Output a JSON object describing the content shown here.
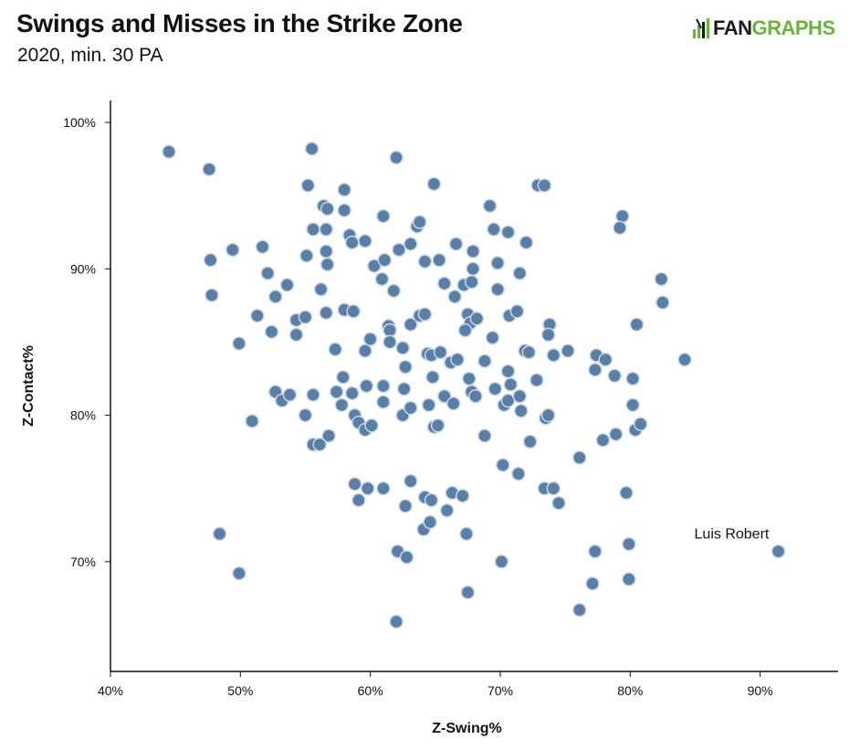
{
  "header": {
    "title": "Swings and Misses in the Strike Zone",
    "subtitle": "2020, min. 30 PA"
  },
  "logo": {
    "part1": "FAN",
    "part2": "GRAPHS"
  },
  "colors": {
    "point_fill": "#5a7fa6",
    "point_stroke": "#c9d6e4",
    "logo_green": "#6ab43e"
  },
  "chart_data": {
    "type": "scatter",
    "xlabel": "Z-Swing%",
    "ylabel": "Z-Contact%",
    "xlim": [
      40,
      96
    ],
    "ylim": [
      62.5,
      101.5
    ],
    "xticks": [
      40,
      50,
      60,
      70,
      80,
      90
    ],
    "yticks": [
      70,
      80,
      90,
      100
    ],
    "xtick_labels": [
      "40%",
      "50%",
      "60%",
      "70%",
      "80%",
      "90%"
    ],
    "ytick_labels": [
      "70%",
      "80%",
      "90%",
      "100%"
    ],
    "grid": false,
    "annotation": {
      "text": "Luis Robert",
      "x": 91.4,
      "y": 70.7
    },
    "points": [
      [
        44.5,
        98.0
      ],
      [
        47.6,
        96.8
      ],
      [
        55.5,
        98.2
      ],
      [
        62.0,
        97.6
      ],
      [
        55.2,
        95.7
      ],
      [
        58.0,
        95.4
      ],
      [
        64.9,
        95.8
      ],
      [
        72.9,
        95.7
      ],
      [
        73.4,
        95.7
      ],
      [
        56.4,
        94.3
      ],
      [
        56.7,
        94.1
      ],
      [
        58.0,
        94.0
      ],
      [
        69.2,
        94.3
      ],
      [
        79.4,
        93.6
      ],
      [
        55.6,
        92.7
      ],
      [
        56.6,
        92.7
      ],
      [
        61.0,
        93.6
      ],
      [
        63.6,
        92.9
      ],
      [
        63.8,
        93.2
      ],
      [
        69.5,
        92.7
      ],
      [
        70.6,
        92.5
      ],
      [
        79.2,
        92.8
      ],
      [
        58.4,
        92.3
      ],
      [
        58.6,
        91.8
      ],
      [
        59.6,
        91.9
      ],
      [
        62.2,
        91.3
      ],
      [
        63.1,
        91.7
      ],
      [
        66.6,
        91.7
      ],
      [
        67.9,
        91.2
      ],
      [
        72.0,
        91.8
      ],
      [
        47.7,
        90.6
      ],
      [
        49.4,
        91.3
      ],
      [
        51.7,
        91.5
      ],
      [
        55.1,
        90.9
      ],
      [
        56.6,
        91.2
      ],
      [
        56.7,
        90.3
      ],
      [
        60.3,
        90.2
      ],
      [
        61.1,
        90.6
      ],
      [
        64.2,
        90.5
      ],
      [
        65.3,
        90.6
      ],
      [
        67.9,
        90.0
      ],
      [
        69.8,
        90.4
      ],
      [
        71.5,
        89.7
      ],
      [
        82.4,
        89.3
      ],
      [
        47.8,
        88.2
      ],
      [
        52.1,
        89.7
      ],
      [
        52.7,
        88.1
      ],
      [
        53.6,
        88.9
      ],
      [
        56.2,
        88.6
      ],
      [
        60.9,
        89.3
      ],
      [
        61.8,
        88.5
      ],
      [
        65.7,
        89.0
      ],
      [
        66.5,
        88.1
      ],
      [
        67.2,
        88.9
      ],
      [
        67.8,
        89.1
      ],
      [
        69.8,
        88.6
      ],
      [
        82.5,
        87.7
      ],
      [
        51.3,
        86.8
      ],
      [
        54.3,
        86.5
      ],
      [
        55.0,
        86.7
      ],
      [
        56.6,
        87.0
      ],
      [
        58.0,
        87.2
      ],
      [
        58.7,
        87.1
      ],
      [
        61.4,
        86.1
      ],
      [
        61.5,
        85.8
      ],
      [
        63.1,
        86.2
      ],
      [
        63.8,
        86.8
      ],
      [
        64.2,
        86.9
      ],
      [
        67.5,
        86.9
      ],
      [
        67.7,
        86.3
      ],
      [
        68.2,
        86.6
      ],
      [
        70.7,
        86.8
      ],
      [
        71.3,
        87.1
      ],
      [
        73.8,
        86.2
      ],
      [
        80.5,
        86.2
      ],
      [
        49.9,
        84.9
      ],
      [
        52.4,
        85.7
      ],
      [
        54.3,
        85.5
      ],
      [
        57.3,
        84.5
      ],
      [
        59.6,
        84.4
      ],
      [
        60.0,
        85.2
      ],
      [
        61.5,
        85.0
      ],
      [
        62.5,
        84.6
      ],
      [
        64.4,
        84.2
      ],
      [
        64.7,
        84.1
      ],
      [
        65.4,
        84.3
      ],
      [
        67.3,
        85.8
      ],
      [
        69.4,
        85.3
      ],
      [
        71.9,
        84.4
      ],
      [
        72.2,
        84.3
      ],
      [
        73.7,
        85.5
      ],
      [
        74.1,
        84.1
      ],
      [
        75.2,
        84.4
      ],
      [
        77.4,
        84.1
      ],
      [
        78.1,
        83.8
      ],
      [
        84.2,
        83.8
      ],
      [
        62.7,
        83.3
      ],
      [
        66.2,
        83.6
      ],
      [
        66.7,
        83.8
      ],
      [
        68.8,
        83.7
      ],
      [
        70.6,
        83.0
      ],
      [
        77.3,
        83.1
      ],
      [
        78.8,
        82.7
      ],
      [
        52.7,
        81.6
      ],
      [
        53.2,
        81.0
      ],
      [
        53.8,
        81.4
      ],
      [
        55.6,
        81.4
      ],
      [
        57.4,
        81.6
      ],
      [
        57.9,
        82.6
      ],
      [
        57.8,
        80.7
      ],
      [
        58.6,
        81.5
      ],
      [
        59.7,
        82.0
      ],
      [
        61.0,
        82.0
      ],
      [
        61.0,
        80.9
      ],
      [
        62.6,
        81.8
      ],
      [
        64.5,
        80.7
      ],
      [
        64.8,
        82.6
      ],
      [
        65.7,
        81.3
      ],
      [
        66.4,
        80.8
      ],
      [
        67.6,
        82.5
      ],
      [
        67.8,
        81.6
      ],
      [
        68.1,
        81.3
      ],
      [
        69.6,
        81.8
      ],
      [
        70.3,
        80.7
      ],
      [
        70.6,
        81.0
      ],
      [
        70.8,
        82.1
      ],
      [
        71.5,
        81.3
      ],
      [
        72.8,
        82.4
      ],
      [
        80.2,
        82.5
      ],
      [
        50.9,
        79.6
      ],
      [
        55.0,
        80.0
      ],
      [
        58.8,
        80.0
      ],
      [
        59.1,
        79.5
      ],
      [
        59.6,
        79.0
      ],
      [
        60.1,
        79.3
      ],
      [
        62.5,
        80.0
      ],
      [
        63.1,
        80.5
      ],
      [
        64.9,
        79.2
      ],
      [
        65.2,
        79.3
      ],
      [
        68.8,
        78.6
      ],
      [
        71.6,
        80.3
      ],
      [
        73.5,
        79.8
      ],
      [
        73.7,
        80.0
      ],
      [
        80.2,
        80.7
      ],
      [
        80.4,
        79.0
      ],
      [
        80.8,
        79.4
      ],
      [
        55.6,
        78.0
      ],
      [
        56.1,
        78.0
      ],
      [
        56.8,
        78.6
      ],
      [
        72.3,
        78.2
      ],
      [
        76.1,
        77.1
      ],
      [
        77.9,
        78.3
      ],
      [
        78.9,
        78.7
      ],
      [
        58.8,
        75.3
      ],
      [
        59.1,
        74.2
      ],
      [
        59.8,
        75.0
      ],
      [
        61.0,
        75.0
      ],
      [
        63.1,
        75.5
      ],
      [
        64.2,
        74.4
      ],
      [
        64.7,
        74.2
      ],
      [
        66.3,
        74.7
      ],
      [
        67.1,
        74.5
      ],
      [
        70.2,
        76.6
      ],
      [
        71.4,
        76.0
      ],
      [
        73.4,
        75.0
      ],
      [
        74.1,
        75.0
      ],
      [
        74.5,
        74.0
      ],
      [
        79.7,
        74.7
      ],
      [
        48.4,
        71.9
      ],
      [
        62.7,
        73.8
      ],
      [
        64.1,
        72.2
      ],
      [
        64.6,
        72.7
      ],
      [
        65.9,
        73.5
      ],
      [
        67.4,
        71.9
      ],
      [
        77.3,
        70.7
      ],
      [
        79.9,
        71.2
      ],
      [
        49.9,
        69.2
      ],
      [
        62.1,
        70.7
      ],
      [
        62.8,
        70.3
      ],
      [
        70.1,
        70.0
      ],
      [
        77.1,
        68.5
      ],
      [
        79.9,
        68.8
      ],
      [
        91.4,
        70.7
      ],
      [
        67.5,
        67.9
      ],
      [
        62.0,
        65.9
      ],
      [
        76.1,
        66.7
      ]
    ]
  }
}
